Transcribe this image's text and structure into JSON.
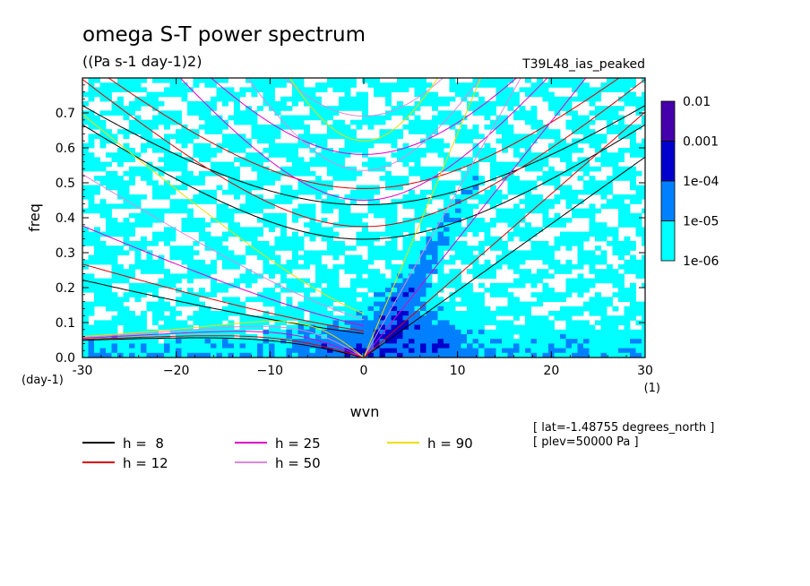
{
  "chart_data": {
    "type": "heatmap",
    "title": "omega S-T power spectrum",
    "subtitle": "((Pa s-1 day-1)2)",
    "run_label": "T39L48_ias_peaked",
    "xlabel": "wvn",
    "ylabel": "freq",
    "x_unit_label": "(1)",
    "y_unit_label": "(day-1)",
    "xlim": [
      -30,
      30
    ],
    "ylim": [
      0,
      0.8
    ],
    "x_ticks": [
      -30,
      -20,
      -10,
      0,
      10,
      20,
      30
    ],
    "x_tick_labels": [
      "-30",
      "−20",
      "−10",
      "0",
      "10",
      "20",
      "30"
    ],
    "y_ticks": [
      0,
      0.1,
      0.2,
      0.3,
      0.4,
      0.5,
      0.6,
      0.7
    ],
    "y_tick_labels": [
      "0.0",
      "0.1",
      "0.2",
      "0.3",
      "0.4",
      "0.5",
      "0.6",
      "0.7"
    ],
    "colorbar": {
      "levels": [
        "1e-06",
        "1e-05",
        "1e-04",
        "0.001",
        "0.01"
      ],
      "colors": [
        "#00ffff",
        "#0080ff",
        "#0000cc",
        "#4400aa"
      ]
    },
    "dispersion_curves": [
      {
        "h": 8,
        "label": "h =  8",
        "color": "#000000"
      },
      {
        "h": 12,
        "label": "h = 12",
        "color": "#dd0000"
      },
      {
        "h": 25,
        "label": "h = 25",
        "color": "#dd00cc"
      },
      {
        "h": 50,
        "label": "h = 50",
        "color": "#dd88dd"
      },
      {
        "h": 90,
        "label": "h = 90",
        "color": "#eedd00"
      }
    ],
    "annotations": [
      "[ lat=-1.48755 degrees_north ]",
      "[ plev=50000 Pa ]"
    ]
  }
}
